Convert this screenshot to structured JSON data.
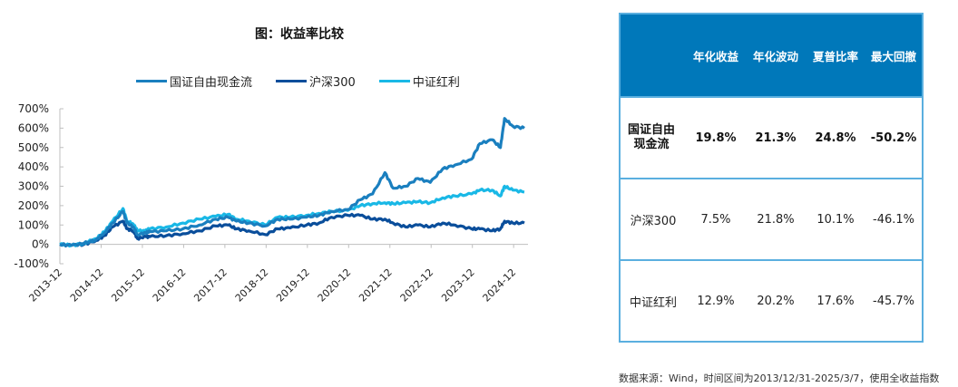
{
  "chart_data": {
    "type": "line",
    "title": "图：收益率比较",
    "xlabel": "",
    "ylabel": "",
    "ylim": [
      -100,
      700
    ],
    "yticks": [
      "700%",
      "600%",
      "500%",
      "400%",
      "300%",
      "200%",
      "100%",
      "0%",
      "-100%"
    ],
    "ytick_values": [
      700,
      600,
      500,
      400,
      300,
      200,
      100,
      0,
      -100
    ],
    "xlim": [
      2013.92,
      2025.18
    ],
    "xticks": [
      "2013-12",
      "2014-12",
      "2015-12",
      "2016-12",
      "2017-12",
      "2018-12",
      "2019-12",
      "2020-12",
      "2021-12",
      "2022-12",
      "2023-12",
      "2024-12"
    ],
    "xtick_values": [
      2013.92,
      2014.92,
      2015.92,
      2016.92,
      2017.92,
      2018.92,
      2019.92,
      2020.92,
      2021.92,
      2022.92,
      2023.92,
      2024.92
    ],
    "legend_position": "top-center",
    "grid": false,
    "x": [
      2013.92,
      2014.2,
      2014.5,
      2014.8,
      2015.0,
      2015.2,
      2015.45,
      2015.55,
      2015.7,
      2015.8,
      2016.0,
      2016.1,
      2016.5,
      2016.9,
      2017.3,
      2017.7,
      2018.0,
      2018.2,
      2018.5,
      2018.9,
      2019.2,
      2019.5,
      2019.9,
      2020.2,
      2020.5,
      2020.9,
      2021.2,
      2021.5,
      2021.8,
      2022.0,
      2022.3,
      2022.6,
      2022.9,
      2023.2,
      2023.5,
      2023.9,
      2024.1,
      2024.4,
      2024.6,
      2024.7,
      2024.9,
      2025.18
    ],
    "series": [
      {
        "name": "国证自由现金流",
        "color": "#1A7FBF",
        "values": [
          0,
          -5,
          5,
          25,
          60,
          110,
          170,
          110,
          90,
          50,
          60,
          65,
          70,
          80,
          100,
          130,
          140,
          120,
          110,
          95,
          130,
          130,
          140,
          150,
          170,
          180,
          230,
          260,
          370,
          290,
          300,
          340,
          320,
          390,
          410,
          440,
          520,
          540,
          500,
          650,
          610,
          600
        ]
      },
      {
        "name": "沪深300",
        "color": "#0A4E9B",
        "values": [
          0,
          -5,
          0,
          20,
          45,
          90,
          120,
          80,
          70,
          30,
          40,
          40,
          45,
          55,
          70,
          95,
          100,
          80,
          70,
          50,
          80,
          85,
          100,
          110,
          140,
          150,
          150,
          130,
          130,
          110,
          90,
          100,
          90,
          110,
          100,
          80,
          80,
          70,
          80,
          120,
          110,
          110
        ]
      },
      {
        "name": "中证红利",
        "color": "#19B8E6",
        "values": [
          0,
          -5,
          5,
          30,
          65,
          120,
          185,
          120,
          105,
          70,
          70,
          80,
          90,
          110,
          130,
          145,
          155,
          130,
          120,
          100,
          140,
          140,
          150,
          160,
          170,
          175,
          200,
          210,
          215,
          210,
          215,
          220,
          215,
          240,
          250,
          260,
          280,
          280,
          250,
          300,
          280,
          270
        ]
      }
    ]
  },
  "table": {
    "headers": [
      "",
      "年化收益",
      "年化波动",
      "夏普比率",
      "最大回撤"
    ],
    "rows": [
      {
        "name": "国证自由现金流",
        "cells": [
          "19.8%",
          "21.3%",
          "24.8%",
          "-50.2%"
        ],
        "bold": true
      },
      {
        "name": "沪深300",
        "cells": [
          "7.5%",
          "21.8%",
          "10.1%",
          "-46.1%"
        ],
        "bold": false
      },
      {
        "name": "中证红利",
        "cells": [
          "12.9%",
          "20.2%",
          "17.6%",
          "-45.7%"
        ],
        "bold": false
      }
    ],
    "header_color": "#0078BA",
    "border_color": "#5AAFDF"
  },
  "footnote": "数据来源：Wind，时间区间为2013/12/31-2025/3/7，使用全收益指数"
}
